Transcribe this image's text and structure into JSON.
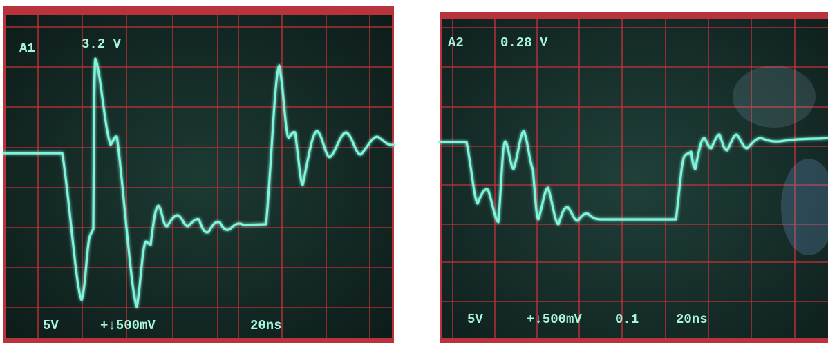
{
  "screens": [
    {
      "channel": "A1",
      "reading": "3.2 V",
      "volts_div": "5V",
      "trigger": "+↓500mV",
      "time_div": "20ns"
    },
    {
      "channel": "A2",
      "reading": "0.28 V",
      "volts_div": "5V",
      "trigger": "+↓500mV",
      "probe": "0.1",
      "time_div": "20ns"
    }
  ]
}
